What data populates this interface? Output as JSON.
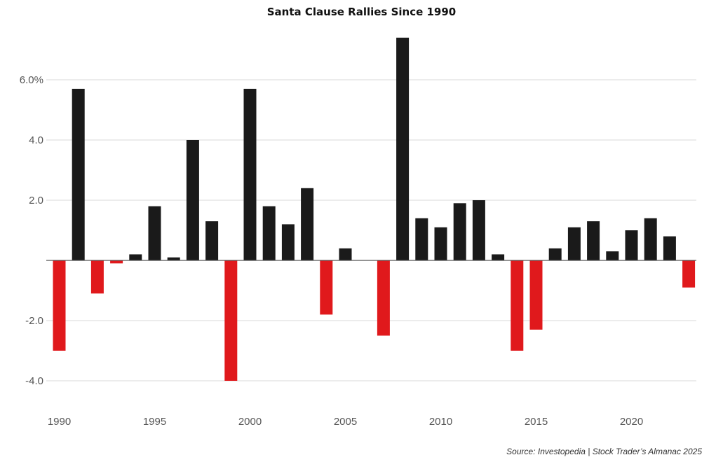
{
  "chart_data": {
    "type": "bar",
    "title": "Santa Clause Rallies Since 1990",
    "xlabel": "",
    "ylabel": "",
    "ylim": [
      -4.6,
      7.6
    ],
    "grid": true,
    "legend": "none",
    "colors": {
      "positive": "#1a1a1a",
      "negative": "#e0191c",
      "grid": "#e6e6e6",
      "zero_line": "#555555",
      "tick_text": "#555555"
    },
    "y_ticks": [
      {
        "value": 6,
        "label": "6.0%"
      },
      {
        "value": 4,
        "label": "4.0"
      },
      {
        "value": 2,
        "label": "2.0"
      },
      {
        "value": -2,
        "label": "-2.0"
      },
      {
        "value": -4,
        "label": "-4.0"
      }
    ],
    "x_ticks": [
      {
        "value": 1990,
        "label": "1990"
      },
      {
        "value": 1995,
        "label": "1995"
      },
      {
        "value": 2000,
        "label": "2000"
      },
      {
        "value": 2005,
        "label": "2005"
      },
      {
        "value": 2010,
        "label": "2010"
      },
      {
        "value": 2015,
        "label": "2015"
      },
      {
        "value": 2020,
        "label": "2020"
      }
    ],
    "x": [
      1990,
      1991,
      1992,
      1993,
      1994,
      1995,
      1996,
      1997,
      1998,
      1999,
      2000,
      2001,
      2002,
      2003,
      2004,
      2005,
      2006,
      2007,
      2008,
      2009,
      2010,
      2011,
      2012,
      2013,
      2014,
      2015,
      2016,
      2017,
      2018,
      2019,
      2020,
      2021,
      2022,
      2023
    ],
    "values": [
      -3.0,
      5.7,
      -1.1,
      -0.1,
      0.2,
      1.8,
      0.1,
      4.0,
      1.3,
      -4.0,
      5.7,
      1.8,
      1.2,
      2.4,
      -1.8,
      0.4,
      0,
      -2.5,
      7.4,
      1.4,
      1.1,
      1.9,
      2.0,
      0.2,
      -3.0,
      -2.3,
      0.4,
      1.1,
      1.3,
      0.3,
      1.0,
      1.4,
      0.8,
      -0.9
    ]
  },
  "source_note": "Source: Investopedia | Stock Trader’s Almanac 2025"
}
